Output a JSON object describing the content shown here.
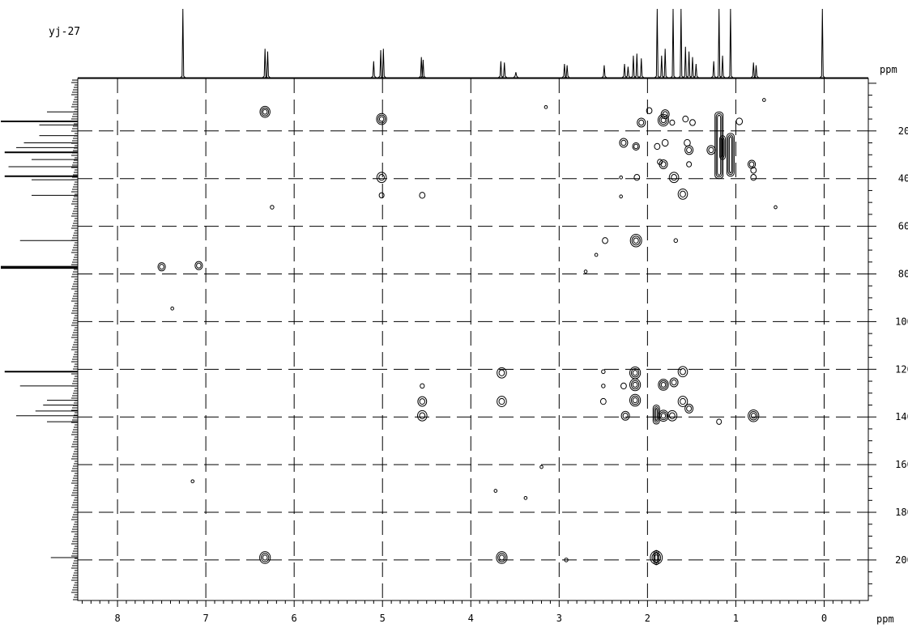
{
  "chart_data": {
    "type": "2d-nmr-contour (HMBC)",
    "title": "yj-27",
    "xlabel": "ppm",
    "ylabel": "ppm",
    "xlim": [
      8.45,
      -0.5
    ],
    "ylim": [
      -2,
      217
    ],
    "x_ticks": [
      8,
      7,
      6,
      5,
      4,
      3,
      2,
      1,
      0
    ],
    "y_ticks": [
      20,
      40,
      60,
      80,
      100,
      120,
      140,
      160,
      180,
      200
    ],
    "grid": "dashed",
    "proton_projection_peaks_ppm": [
      {
        "ppm": 7.26,
        "h": 1.0
      },
      {
        "ppm": 6.33,
        "h": 0.42
      },
      {
        "ppm": 6.3,
        "h": 0.38
      },
      {
        "ppm": 5.1,
        "h": 0.24
      },
      {
        "ppm": 5.02,
        "h": 0.4
      },
      {
        "ppm": 4.99,
        "h": 0.42
      },
      {
        "ppm": 4.56,
        "h": 0.3
      },
      {
        "ppm": 4.54,
        "h": 0.26
      },
      {
        "ppm": 3.66,
        "h": 0.24
      },
      {
        "ppm": 3.62,
        "h": 0.22
      },
      {
        "ppm": 3.49,
        "h": 0.08
      },
      {
        "ppm": 2.94,
        "h": 0.2
      },
      {
        "ppm": 2.91,
        "h": 0.18
      },
      {
        "ppm": 2.49,
        "h": 0.18
      },
      {
        "ppm": 2.26,
        "h": 0.2
      },
      {
        "ppm": 2.22,
        "h": 0.16
      },
      {
        "ppm": 2.16,
        "h": 0.32
      },
      {
        "ppm": 2.12,
        "h": 0.35
      },
      {
        "ppm": 2.07,
        "h": 0.28
      },
      {
        "ppm": 1.89,
        "h": 1.0
      },
      {
        "ppm": 1.84,
        "h": 0.32
      },
      {
        "ppm": 1.8,
        "h": 0.42
      },
      {
        "ppm": 1.71,
        "h": 1.0
      },
      {
        "ppm": 1.62,
        "h": 1.0
      },
      {
        "ppm": 1.57,
        "h": 0.45
      },
      {
        "ppm": 1.53,
        "h": 0.38
      },
      {
        "ppm": 1.49,
        "h": 0.3
      },
      {
        "ppm": 1.45,
        "h": 0.2
      },
      {
        "ppm": 1.25,
        "h": 0.24
      },
      {
        "ppm": 1.19,
        "h": 1.0
      },
      {
        "ppm": 1.15,
        "h": 0.32
      },
      {
        "ppm": 1.06,
        "h": 1.0
      },
      {
        "ppm": 0.8,
        "h": 0.22
      },
      {
        "ppm": 0.77,
        "h": 0.18
      },
      {
        "ppm": 0.02,
        "h": 1.0
      }
    ],
    "carbon_projection_peaks_ppm": [
      {
        "ppm": 12,
        "h": 0.4
      },
      {
        "ppm": 16,
        "h": 1.0
      },
      {
        "ppm": 17.5,
        "h": 0.5
      },
      {
        "ppm": 22,
        "h": 0.5
      },
      {
        "ppm": 25,
        "h": 0.7
      },
      {
        "ppm": 27,
        "h": 0.8
      },
      {
        "ppm": 29,
        "h": 0.95
      },
      {
        "ppm": 32,
        "h": 0.6
      },
      {
        "ppm": 35,
        "h": 0.9
      },
      {
        "ppm": 39,
        "h": 0.95
      },
      {
        "ppm": 40.5,
        "h": 0.6
      },
      {
        "ppm": 47,
        "h": 0.6
      },
      {
        "ppm": 66,
        "h": 0.75
      },
      {
        "ppm": 77,
        "h": 1.0
      },
      {
        "ppm": 77.5,
        "h": 1.0
      },
      {
        "ppm": 121,
        "h": 0.95
      },
      {
        "ppm": 127,
        "h": 0.75
      },
      {
        "ppm": 133,
        "h": 0.4
      },
      {
        "ppm": 135,
        "h": 0.45
      },
      {
        "ppm": 137.5,
        "h": 0.55
      },
      {
        "ppm": 139.5,
        "h": 0.8
      },
      {
        "ppm": 142,
        "h": 0.4
      },
      {
        "ppm": 199,
        "h": 0.35
      }
    ],
    "cross_peaks": [
      {
        "x": 6.33,
        "y": 12,
        "s": 1.3
      },
      {
        "x": 5.01,
        "y": 15,
        "s": 1.3
      },
      {
        "x": 5.01,
        "y": 39.5,
        "s": 1.2
      },
      {
        "x": 5.01,
        "y": 47,
        "s": 0.5
      },
      {
        "x": 4.55,
        "y": 47,
        "s": 0.6
      },
      {
        "x": 6.25,
        "y": 52,
        "s": 0.3
      },
      {
        "x": 7.5,
        "y": 77,
        "s": 0.9
      },
      {
        "x": 7.08,
        "y": 76.5,
        "s": 0.9
      },
      {
        "x": 4.55,
        "y": 127,
        "s": 0.4
      },
      {
        "x": 4.55,
        "y": 133.5,
        "s": 1.1
      },
      {
        "x": 4.55,
        "y": 139.5,
        "s": 1.2
      },
      {
        "x": 3.65,
        "y": 121.5,
        "s": 1.2
      },
      {
        "x": 3.65,
        "y": 133.5,
        "s": 1.2
      },
      {
        "x": 6.33,
        "y": 199,
        "s": 1.4
      },
      {
        "x": 3.65,
        "y": 199,
        "s": 1.4
      },
      {
        "x": 1.9,
        "y": 199,
        "s": 1.6
      },
      {
        "x": 1.98,
        "y": 11.5,
        "s": 0.6
      },
      {
        "x": 1.8,
        "y": 13,
        "s": 1.0
      },
      {
        "x": 2.07,
        "y": 16.5,
        "s": 1.0
      },
      {
        "x": 1.82,
        "y": 15.5,
        "s": 1.4
      },
      {
        "x": 1.72,
        "y": 16.5,
        "s": 0.5
      },
      {
        "x": 1.57,
        "y": 15,
        "s": 0.6
      },
      {
        "x": 1.49,
        "y": 16.5,
        "s": 0.6
      },
      {
        "x": 0.96,
        "y": 16,
        "s": 0.7
      },
      {
        "x": 2.27,
        "y": 25,
        "s": 1.0
      },
      {
        "x": 2.13,
        "y": 26.5,
        "s": 0.8
      },
      {
        "x": 1.89,
        "y": 26.5,
        "s": 0.6
      },
      {
        "x": 1.8,
        "y": 25,
        "s": 0.7
      },
      {
        "x": 1.55,
        "y": 25,
        "s": 0.7
      },
      {
        "x": 1.53,
        "y": 28,
        "s": 1.0
      },
      {
        "x": 1.28,
        "y": 28,
        "s": 1.0
      },
      {
        "x": 1.86,
        "y": 33,
        "s": 0.5
      },
      {
        "x": 1.82,
        "y": 34,
        "s": 1.0
      },
      {
        "x": 1.53,
        "y": 34,
        "s": 0.5
      },
      {
        "x": 1.7,
        "y": 39.5,
        "s": 1.2
      },
      {
        "x": 2.12,
        "y": 39.5,
        "s": 0.6
      },
      {
        "x": 2.3,
        "y": 39.5,
        "s": 0.2
      },
      {
        "x": 1.6,
        "y": 46.5,
        "s": 1.2
      },
      {
        "x": 2.3,
        "y": 47.5,
        "s": 0.2
      },
      {
        "x": 0.82,
        "y": 34,
        "s": 0.9
      },
      {
        "x": 0.8,
        "y": 36.5,
        "s": 0.6
      },
      {
        "x": 0.8,
        "y": 39.5,
        "s": 0.6
      },
      {
        "x": 2.48,
        "y": 66,
        "s": 0.6
      },
      {
        "x": 2.13,
        "y": 66,
        "s": 1.5
      },
      {
        "x": 1.68,
        "y": 66,
        "s": 0.3
      },
      {
        "x": 2.5,
        "y": 121,
        "s": 0.3
      },
      {
        "x": 2.5,
        "y": 127,
        "s": 0.3
      },
      {
        "x": 2.5,
        "y": 133.5,
        "s": 0.6
      },
      {
        "x": 2.27,
        "y": 127,
        "s": 0.6
      },
      {
        "x": 2.14,
        "y": 121.5,
        "s": 1.4
      },
      {
        "x": 2.14,
        "y": 126.5,
        "s": 1.4
      },
      {
        "x": 2.14,
        "y": 133,
        "s": 1.4
      },
      {
        "x": 2.25,
        "y": 139.5,
        "s": 1.0
      },
      {
        "x": 1.82,
        "y": 126.5,
        "s": 1.3
      },
      {
        "x": 1.7,
        "y": 125.5,
        "s": 1.0
      },
      {
        "x": 1.6,
        "y": 121,
        "s": 1.2
      },
      {
        "x": 1.6,
        "y": 133.5,
        "s": 1.2
      },
      {
        "x": 1.53,
        "y": 136.5,
        "s": 1.0
      },
      {
        "x": 1.72,
        "y": 139.5,
        "s": 1.2
      },
      {
        "x": 1.82,
        "y": 139.5,
        "s": 1.3
      },
      {
        "x": 0.8,
        "y": 139.5,
        "s": 1.4
      },
      {
        "x": 1.19,
        "y": 142,
        "s": 0.5
      },
      {
        "x": 2.92,
        "y": 200,
        "s": 0.3
      },
      {
        "x": 3.72,
        "y": 171,
        "s": 0.2
      },
      {
        "x": 3.38,
        "y": 174,
        "s": 0.2
      },
      {
        "x": 3.15,
        "y": 10,
        "s": 0.2
      },
      {
        "x": 0.68,
        "y": 7,
        "s": 0.2
      },
      {
        "x": 0.55,
        "y": 52,
        "s": 0.2
      },
      {
        "x": 7.38,
        "y": 94.5,
        "s": 0.2
      },
      {
        "x": 7.15,
        "y": 167,
        "s": 0.2
      },
      {
        "x": 2.7,
        "y": 79,
        "s": 0.2
      },
      {
        "x": 2.58,
        "y": 72,
        "s": 0.2
      },
      {
        "x": 3.2,
        "y": 161,
        "s": 0.2
      }
    ],
    "elongated_peaks": [
      {
        "x": 1.19,
        "y1": 12,
        "y2": 40,
        "w": 10
      },
      {
        "x": 1.06,
        "y1": 21,
        "y2": 39,
        "w": 9
      },
      {
        "x": 1.15,
        "y1": 22,
        "y2": 32,
        "w": 7
      },
      {
        "x": 1.9,
        "y1": 135,
        "y2": 143,
        "w": 8
      },
      {
        "x": 1.9,
        "y1": 196,
        "y2": 202,
        "w": 6
      }
    ]
  }
}
